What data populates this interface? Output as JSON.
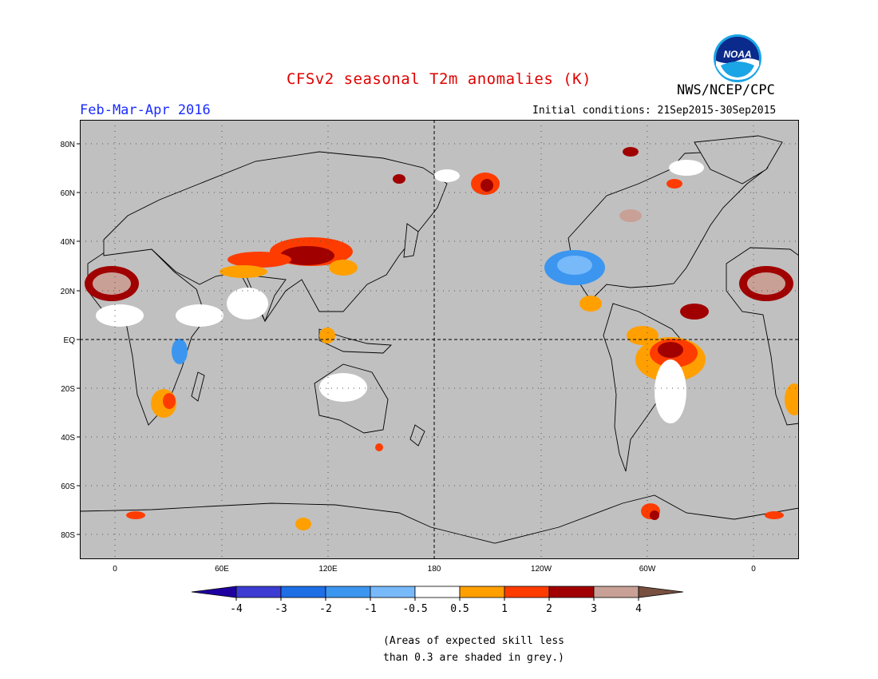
{
  "header": {
    "title": "CFSv2 seasonal T2m anomalies (K)",
    "period": "Feb-Mar-Apr 2016",
    "initial_conditions": "Initial conditions: 21Sep2015-30Sep2015",
    "agency": "NWS/NCEP/CPC",
    "logo_text": "NOAA"
  },
  "map": {
    "projection": "equirectangular",
    "lat_labels": [
      "80N",
      "60N",
      "40N",
      "20N",
      "EQ",
      "20S",
      "40S",
      "60S",
      "80S"
    ],
    "lon_labels": [
      "0",
      "60E",
      "120E",
      "180",
      "120W",
      "60W",
      "0"
    ],
    "background_color": "#c0c0c0",
    "neutral_color": "#ffffff"
  },
  "colorbar": {
    "labels": [
      "-4",
      "-3",
      "-2",
      "-1",
      "-0.5",
      "0.5",
      "1",
      "2",
      "3",
      "4"
    ],
    "colors": [
      "#1e00a0",
      "#3c3cd2",
      "#1e6ee6",
      "#3c96f0",
      "#78b9fa",
      "#ffffff",
      "#ffa000",
      "#ff3c00",
      "#a00000",
      "#c8a096",
      "#785040"
    ]
  },
  "footnote": {
    "line1": "(Areas of expected skill less",
    "line2": "than 0.3 are shaded in grey.)"
  }
}
